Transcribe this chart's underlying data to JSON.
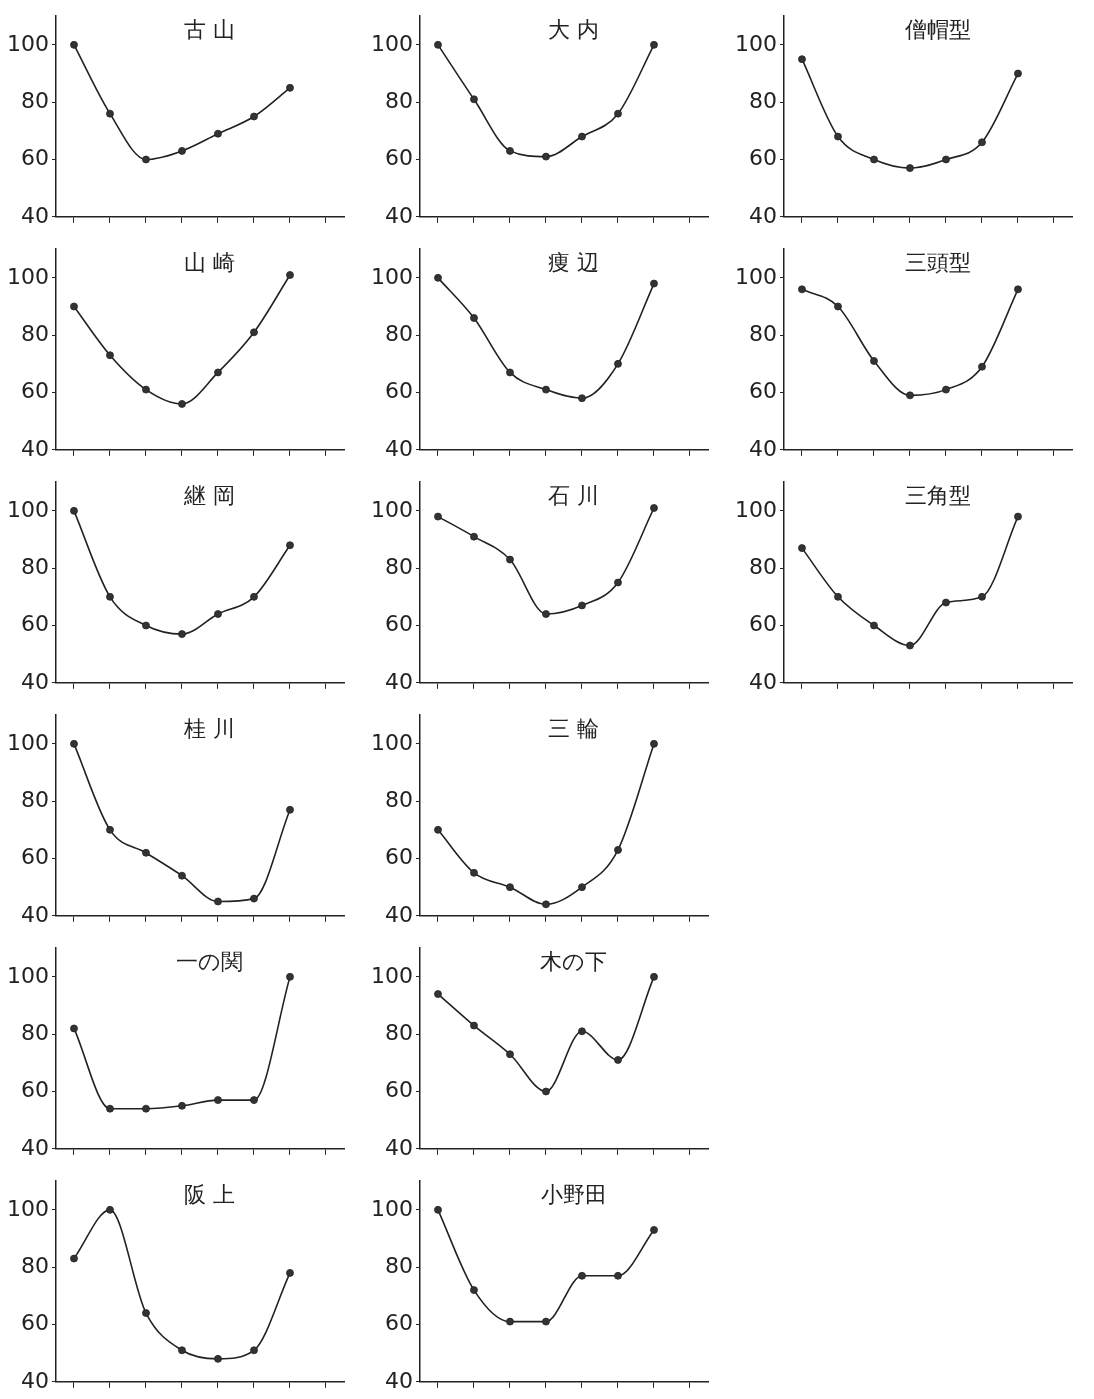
{
  "chart_data": [
    {
      "type": "line",
      "title": "古 山",
      "categories": [
        null,
        null,
        null,
        null,
        null,
        null,
        null,
        null
      ],
      "series": [
        {
          "color": "#333333",
          "values": [
            100,
            76,
            60,
            63,
            69,
            75,
            85,
            null
          ]
        }
      ],
      "ylim": [
        40,
        110
      ],
      "yticks": [
        40,
        60,
        80,
        100
      ],
      "tick_labels": "y",
      "grid": false,
      "legend": false,
      "marker": "circle"
    },
    {
      "type": "line",
      "title": "大 内",
      "categories": [
        null,
        null,
        null,
        null,
        null,
        null,
        null,
        null
      ],
      "series": [
        {
          "color": "#333333",
          "values": [
            100,
            81,
            63,
            61,
            68,
            76,
            100,
            null
          ]
        }
      ],
      "ylim": [
        40,
        110
      ],
      "yticks": [
        40,
        60,
        80,
        100
      ],
      "tick_labels": "y",
      "grid": false,
      "legend": false,
      "marker": "circle"
    },
    {
      "type": "line",
      "title": "僧帽型",
      "categories": [
        null,
        null,
        null,
        null,
        null,
        null,
        null,
        null
      ],
      "series": [
        {
          "color": "#333333",
          "values": [
            95,
            68,
            60,
            57,
            60,
            66,
            90,
            null
          ]
        }
      ],
      "ylim": [
        40,
        110
      ],
      "yticks": [
        40,
        60,
        80,
        100
      ],
      "tick_labels": "y",
      "grid": false,
      "legend": false,
      "marker": "circle"
    },
    {
      "type": "line",
      "title": "山 崎",
      "categories": [
        null,
        null,
        null,
        null,
        null,
        null,
        null,
        null
      ],
      "series": [
        {
          "color": "#333333",
          "values": [
            90,
            73,
            61,
            56,
            67,
            81,
            101,
            null
          ]
        }
      ],
      "ylim": [
        40,
        110
      ],
      "yticks": [
        40,
        60,
        80,
        100
      ],
      "tick_labels": "y",
      "grid": false,
      "legend": false,
      "marker": "circle"
    },
    {
      "type": "line",
      "title": "痩 辺",
      "categories": [
        null,
        null,
        null,
        null,
        null,
        null,
        null,
        null
      ],
      "series": [
        {
          "color": "#333333",
          "values": [
            100,
            86,
            67,
            61,
            58,
            70,
            98,
            null
          ]
        }
      ],
      "ylim": [
        40,
        110
      ],
      "yticks": [
        40,
        60,
        80,
        100
      ],
      "tick_labels": "y",
      "grid": false,
      "legend": false,
      "marker": "circle"
    },
    {
      "type": "line",
      "title": "三頭型",
      "categories": [
        null,
        null,
        null,
        null,
        null,
        null,
        null,
        null
      ],
      "series": [
        {
          "color": "#333333",
          "values": [
            96,
            90,
            71,
            59,
            61,
            69,
            96,
            null
          ]
        }
      ],
      "ylim": [
        40,
        110
      ],
      "yticks": [
        40,
        60,
        80,
        100
      ],
      "tick_labels": "y",
      "grid": false,
      "legend": false,
      "marker": "circle"
    },
    {
      "type": "line",
      "title": "継 岡",
      "categories": [
        null,
        null,
        null,
        null,
        null,
        null,
        null,
        null
      ],
      "series": [
        {
          "color": "#333333",
          "values": [
            100,
            70,
            60,
            57,
            64,
            70,
            88,
            null
          ]
        }
      ],
      "ylim": [
        40,
        110
      ],
      "yticks": [
        40,
        60,
        80,
        100
      ],
      "tick_labels": "y",
      "grid": false,
      "legend": false,
      "marker": "circle"
    },
    {
      "type": "line",
      "title": "石 川",
      "categories": [
        null,
        null,
        null,
        null,
        null,
        null,
        null,
        null
      ],
      "series": [
        {
          "color": "#333333",
          "values": [
            98,
            91,
            83,
            64,
            67,
            75,
            101,
            null
          ]
        }
      ],
      "ylim": [
        40,
        110
      ],
      "yticks": [
        40,
        60,
        80,
        100
      ],
      "tick_labels": "y",
      "grid": false,
      "legend": false,
      "marker": "circle"
    },
    {
      "type": "line",
      "title": "三角型",
      "categories": [
        null,
        null,
        null,
        null,
        null,
        null,
        null,
        null
      ],
      "series": [
        {
          "color": "#333333",
          "values": [
            87,
            70,
            60,
            53,
            68,
            70,
            98,
            null
          ]
        }
      ],
      "ylim": [
        40,
        110
      ],
      "yticks": [
        40,
        60,
        80,
        100
      ],
      "tick_labels": "y",
      "grid": false,
      "legend": false,
      "marker": "circle"
    },
    {
      "type": "line",
      "title": "桂 川",
      "categories": [
        null,
        null,
        null,
        null,
        null,
        null,
        null,
        null
      ],
      "series": [
        {
          "color": "#333333",
          "values": [
            100,
            70,
            62,
            54,
            45,
            46,
            77,
            null
          ]
        }
      ],
      "ylim": [
        40,
        110
      ],
      "yticks": [
        40,
        60,
        80,
        100
      ],
      "tick_labels": "y",
      "grid": false,
      "legend": false,
      "marker": "circle"
    },
    {
      "type": "line",
      "title": "三 輪",
      "categories": [
        null,
        null,
        null,
        null,
        null,
        null,
        null,
        null
      ],
      "series": [
        {
          "color": "#333333",
          "values": [
            70,
            55,
            50,
            44,
            50,
            63,
            100,
            null
          ]
        }
      ],
      "ylim": [
        40,
        110
      ],
      "yticks": [
        40,
        60,
        80,
        100
      ],
      "tick_labels": "y",
      "grid": false,
      "legend": false,
      "marker": "circle"
    },
    {
      "type": "line",
      "title": "一の関",
      "categories": [
        null,
        null,
        null,
        null,
        null,
        null,
        null,
        null
      ],
      "series": [
        {
          "color": "#333333",
          "values": [
            82,
            54,
            54,
            55,
            57,
            57,
            100,
            null
          ]
        }
      ],
      "ylim": [
        40,
        110
      ],
      "yticks": [
        40,
        60,
        80,
        100
      ],
      "tick_labels": "y",
      "grid": false,
      "legend": false,
      "marker": "circle"
    },
    {
      "type": "line",
      "title": "木の下",
      "categories": [
        null,
        null,
        null,
        null,
        null,
        null,
        null,
        null
      ],
      "series": [
        {
          "color": "#333333",
          "values": [
            94,
            83,
            73,
            60,
            81,
            71,
            100,
            null
          ]
        }
      ],
      "ylim": [
        40,
        110
      ],
      "yticks": [
        40,
        60,
        80,
        100
      ],
      "tick_labels": "y",
      "grid": false,
      "legend": false,
      "marker": "circle"
    },
    {
      "type": "line",
      "title": "阪 上",
      "categories": [
        null,
        null,
        null,
        null,
        null,
        null,
        null,
        null
      ],
      "series": [
        {
          "color": "#333333",
          "values": [
            83,
            100,
            64,
            51,
            48,
            51,
            78,
            null
          ]
        }
      ],
      "ylim": [
        40,
        110
      ],
      "yticks": [
        40,
        60,
        80,
        100
      ],
      "tick_labels": "y",
      "grid": false,
      "legend": false,
      "marker": "circle"
    },
    {
      "type": "line",
      "title": "小野田",
      "categories": [
        null,
        null,
        null,
        null,
        null,
        null,
        null,
        null
      ],
      "series": [
        {
          "color": "#333333",
          "values": [
            100,
            72,
            61,
            61,
            77,
            77,
            93,
            null
          ]
        }
      ],
      "ylim": [
        40,
        110
      ],
      "yticks": [
        40,
        60,
        80,
        100
      ],
      "tick_labels": "y",
      "grid": false,
      "legend": false,
      "marker": "circle"
    }
  ]
}
